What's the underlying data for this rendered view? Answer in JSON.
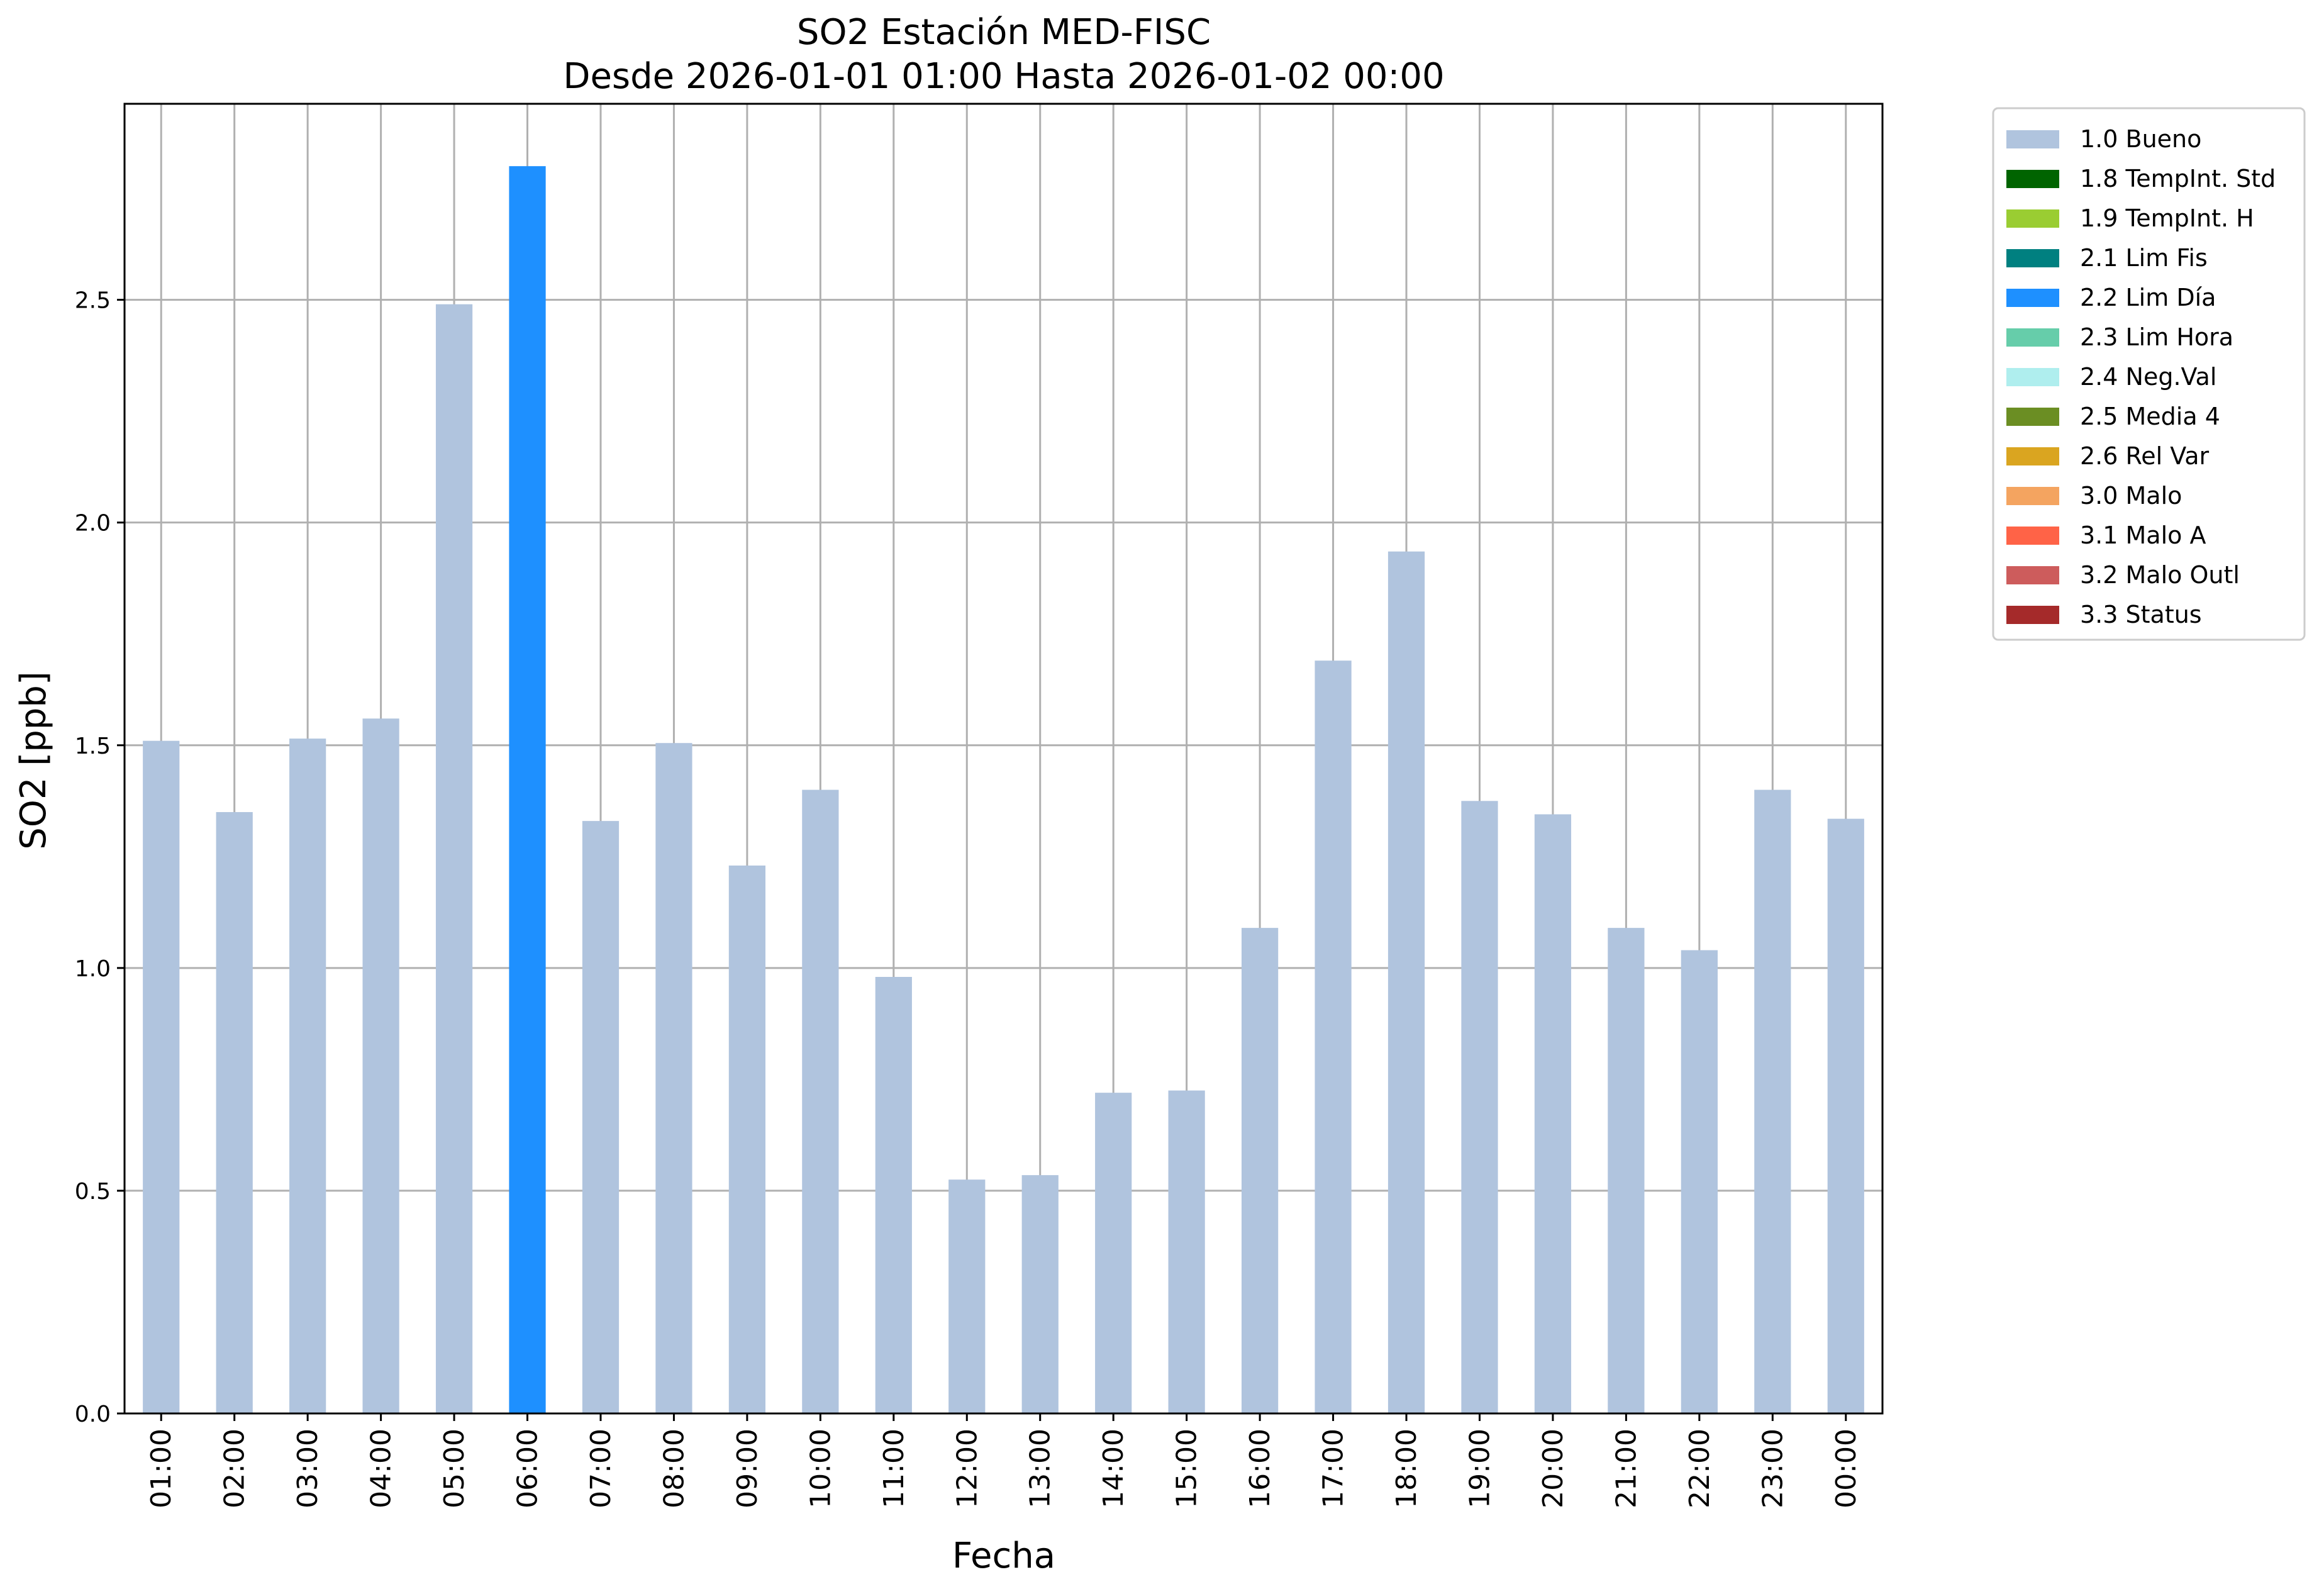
{
  "chart_data": {
    "type": "bar",
    "title": "SO2 Estación MED-FISC",
    "subtitle": "Desde 2026-01-01 01:00 Hasta 2026-01-02 00:00",
    "xlabel": "Fecha",
    "ylabel": "SO2 [ppb]",
    "ylim": [
      0,
      2.94
    ],
    "yticks": [
      "0.0",
      "0.5",
      "1.0",
      "1.5",
      "2.0",
      "2.5"
    ],
    "grid": true,
    "legend_position": "outside-right",
    "categories": [
      "01:00",
      "02:00",
      "03:00",
      "04:00",
      "05:00",
      "06:00",
      "07:00",
      "08:00",
      "09:00",
      "10:00",
      "11:00",
      "12:00",
      "13:00",
      "14:00",
      "15:00",
      "16:00",
      "17:00",
      "18:00",
      "19:00",
      "20:00",
      "21:00",
      "22:00",
      "23:00",
      "00:00"
    ],
    "values": [
      1.51,
      1.35,
      1.515,
      1.56,
      2.49,
      2.8,
      1.33,
      1.505,
      1.23,
      1.4,
      0.98,
      0.525,
      0.535,
      0.72,
      0.725,
      1.09,
      1.69,
      1.935,
      1.375,
      1.345,
      1.09,
      1.04,
      1.4,
      1.335
    ],
    "flags": [
      "1.0",
      "1.0",
      "1.0",
      "1.0",
      "1.0",
      "2.2",
      "1.0",
      "1.0",
      "1.0",
      "1.0",
      "1.0",
      "1.0",
      "1.0",
      "1.0",
      "1.0",
      "1.0",
      "1.0",
      "1.0",
      "1.0",
      "1.0",
      "1.0",
      "1.0",
      "1.0",
      "1.0"
    ],
    "legend": [
      {
        "code": "1.0",
        "label": "1.0 Bueno",
        "color": "#b0c4de"
      },
      {
        "code": "1.8",
        "label": "1.8 TempInt. Std",
        "color": "#006400"
      },
      {
        "code": "1.9",
        "label": "1.9 TempInt. H",
        "color": "#9acd32"
      },
      {
        "code": "2.1",
        "label": "2.1 Lim Fis",
        "color": "#008080"
      },
      {
        "code": "2.2",
        "label": "2.2 Lim Día",
        "color": "#1e90ff"
      },
      {
        "code": "2.3",
        "label": "2.3 Lim Hora",
        "color": "#66cdaa"
      },
      {
        "code": "2.4",
        "label": "2.4 Neg.Val",
        "color": "#afeeee"
      },
      {
        "code": "2.5",
        "label": "2.5 Media 4",
        "color": "#6b8e23"
      },
      {
        "code": "2.6",
        "label": "2.6 Rel Var",
        "color": "#daa520"
      },
      {
        "code": "3.0",
        "label": "3.0 Malo",
        "color": "#f4a460"
      },
      {
        "code": "3.1",
        "label": "3.1 Malo A",
        "color": "#ff6347"
      },
      {
        "code": "3.2",
        "label": "3.2 Malo Outl",
        "color": "#cd5c5c"
      },
      {
        "code": "3.3",
        "label": "3.3 Status",
        "color": "#a52a2a"
      }
    ]
  }
}
